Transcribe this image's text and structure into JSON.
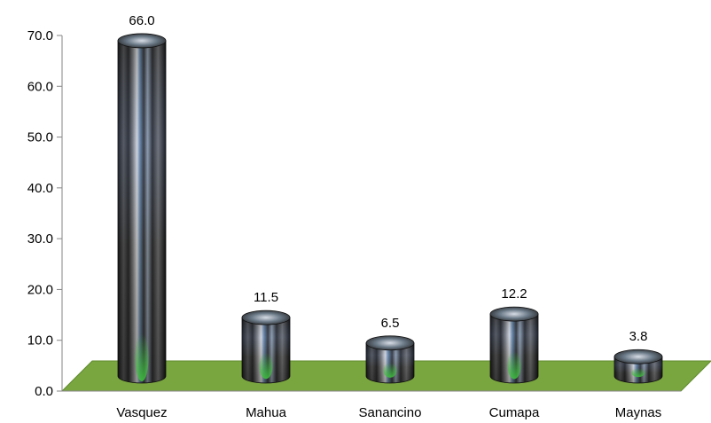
{
  "chart_data": {
    "type": "bar",
    "style": "3d-cylinder",
    "categories": [
      "Vasquez",
      "Mahua",
      "Sanancino",
      "Cumapa",
      "Maynas"
    ],
    "values": [
      66.0,
      11.5,
      6.5,
      12.2,
      3.8
    ],
    "value_labels": [
      "66.0",
      "11.5",
      "6.5",
      "12.2",
      "3.8"
    ],
    "ylim": [
      0,
      70
    ],
    "yticks": [
      "0.0",
      "10.0",
      "20.0",
      "30.0",
      "40.0",
      "50.0",
      "60.0",
      "70.0"
    ],
    "grid": false,
    "legend": "none",
    "colors": {
      "floor": "#7aa640",
      "floor_edge": "#5d8a2a",
      "axis": "#868686"
    }
  }
}
